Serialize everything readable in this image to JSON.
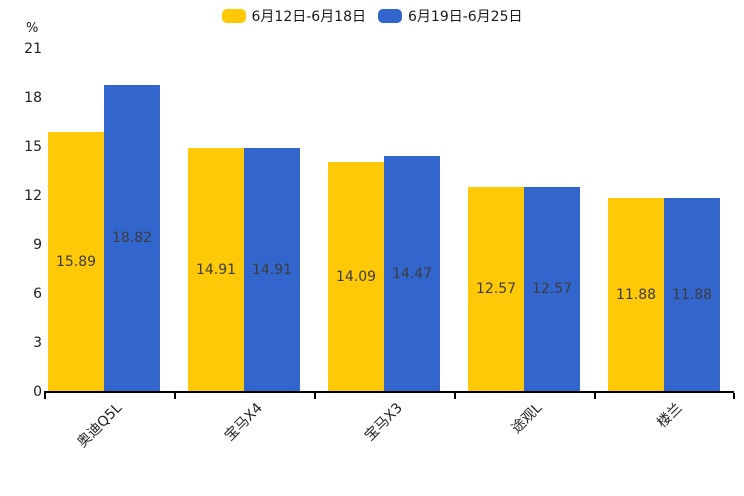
{
  "chart": {
    "unit_label": "%",
    "text_color": "#1f1f1f",
    "value_label_color": "#3c3c3c",
    "axis_color": "#000000"
  },
  "chart_data": {
    "type": "bar",
    "title": "",
    "xlabel": "",
    "ylabel": "%",
    "categories": [
      "奥迪Q5L",
      "宝马X4",
      "宝马X3",
      "途观L",
      "楼兰"
    ],
    "series": [
      {
        "name": "6月12日-6月18日",
        "color": "#FFC907",
        "values": [
          15.89,
          14.91,
          14.09,
          12.57,
          11.88
        ]
      },
      {
        "name": "6月19日-6月25日",
        "color": "#3366CC",
        "values": [
          18.82,
          14.91,
          14.47,
          12.57,
          11.88
        ]
      }
    ],
    "yticks": [
      0,
      3,
      6,
      9,
      12,
      15,
      18,
      21
    ],
    "ylim": [
      0,
      21
    ],
    "grid": false,
    "legend_position": "top-center",
    "value_labels": true,
    "value_label_decimals": 2
  }
}
